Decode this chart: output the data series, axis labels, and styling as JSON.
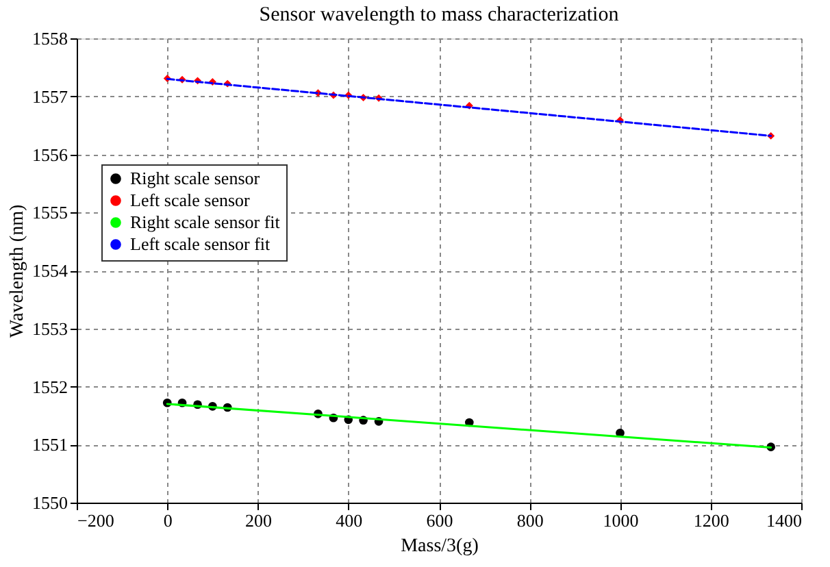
{
  "chart_data": {
    "type": "scatter",
    "title": "Sensor wavelength to mass characterization",
    "xlabel": "Mass/3(g)",
    "ylabel": "Wavelength (nm)",
    "xlim": [
      -200,
      1400
    ],
    "xticks": [
      -200,
      0,
      200,
      400,
      600,
      800,
      1000,
      1200,
      1400
    ],
    "ylim": [
      1550,
      1558
    ],
    "yticks": [
      1550,
      1551,
      1552,
      1553,
      1554,
      1555,
      1556,
      1557,
      1558
    ],
    "grid": true,
    "legend": "top left",
    "series": [
      {
        "name": "Right scale sensor",
        "marker": "circle",
        "color": "#000000",
        "x": [
          0,
          33,
          67,
          100,
          133,
          333,
          367,
          400,
          433,
          467,
          667,
          1000,
          1333
        ],
        "values": [
          1551.72,
          1551.72,
          1551.69,
          1551.66,
          1551.64,
          1551.53,
          1551.46,
          1551.43,
          1551.42,
          1551.4,
          1551.38,
          1551.2,
          1550.96
        ]
      },
      {
        "name": "Left scale sensor",
        "marker": "diamond",
        "color": "#ff0000",
        "x": [
          0,
          33,
          67,
          100,
          133,
          333,
          367,
          400,
          433,
          467,
          667,
          1000,
          1333
        ],
        "values": [
          1557.31,
          1557.29,
          1557.27,
          1557.25,
          1557.22,
          1557.06,
          1557.02,
          1557.02,
          1556.98,
          1556.97,
          1556.84,
          1556.59,
          1556.32
        ]
      },
      {
        "name": "Right scale sensor fit",
        "type": "line",
        "line_style": "solid",
        "color": "#00ff00",
        "x": [
          0,
          1333
        ],
        "values": [
          1551.7,
          1550.95
        ]
      },
      {
        "name": "Left scale sensor fit",
        "type": "line",
        "line_style": "dashed",
        "color": "#0000ff",
        "x": [
          0,
          1333
        ],
        "values": [
          1557.3,
          1556.32
        ]
      }
    ]
  }
}
